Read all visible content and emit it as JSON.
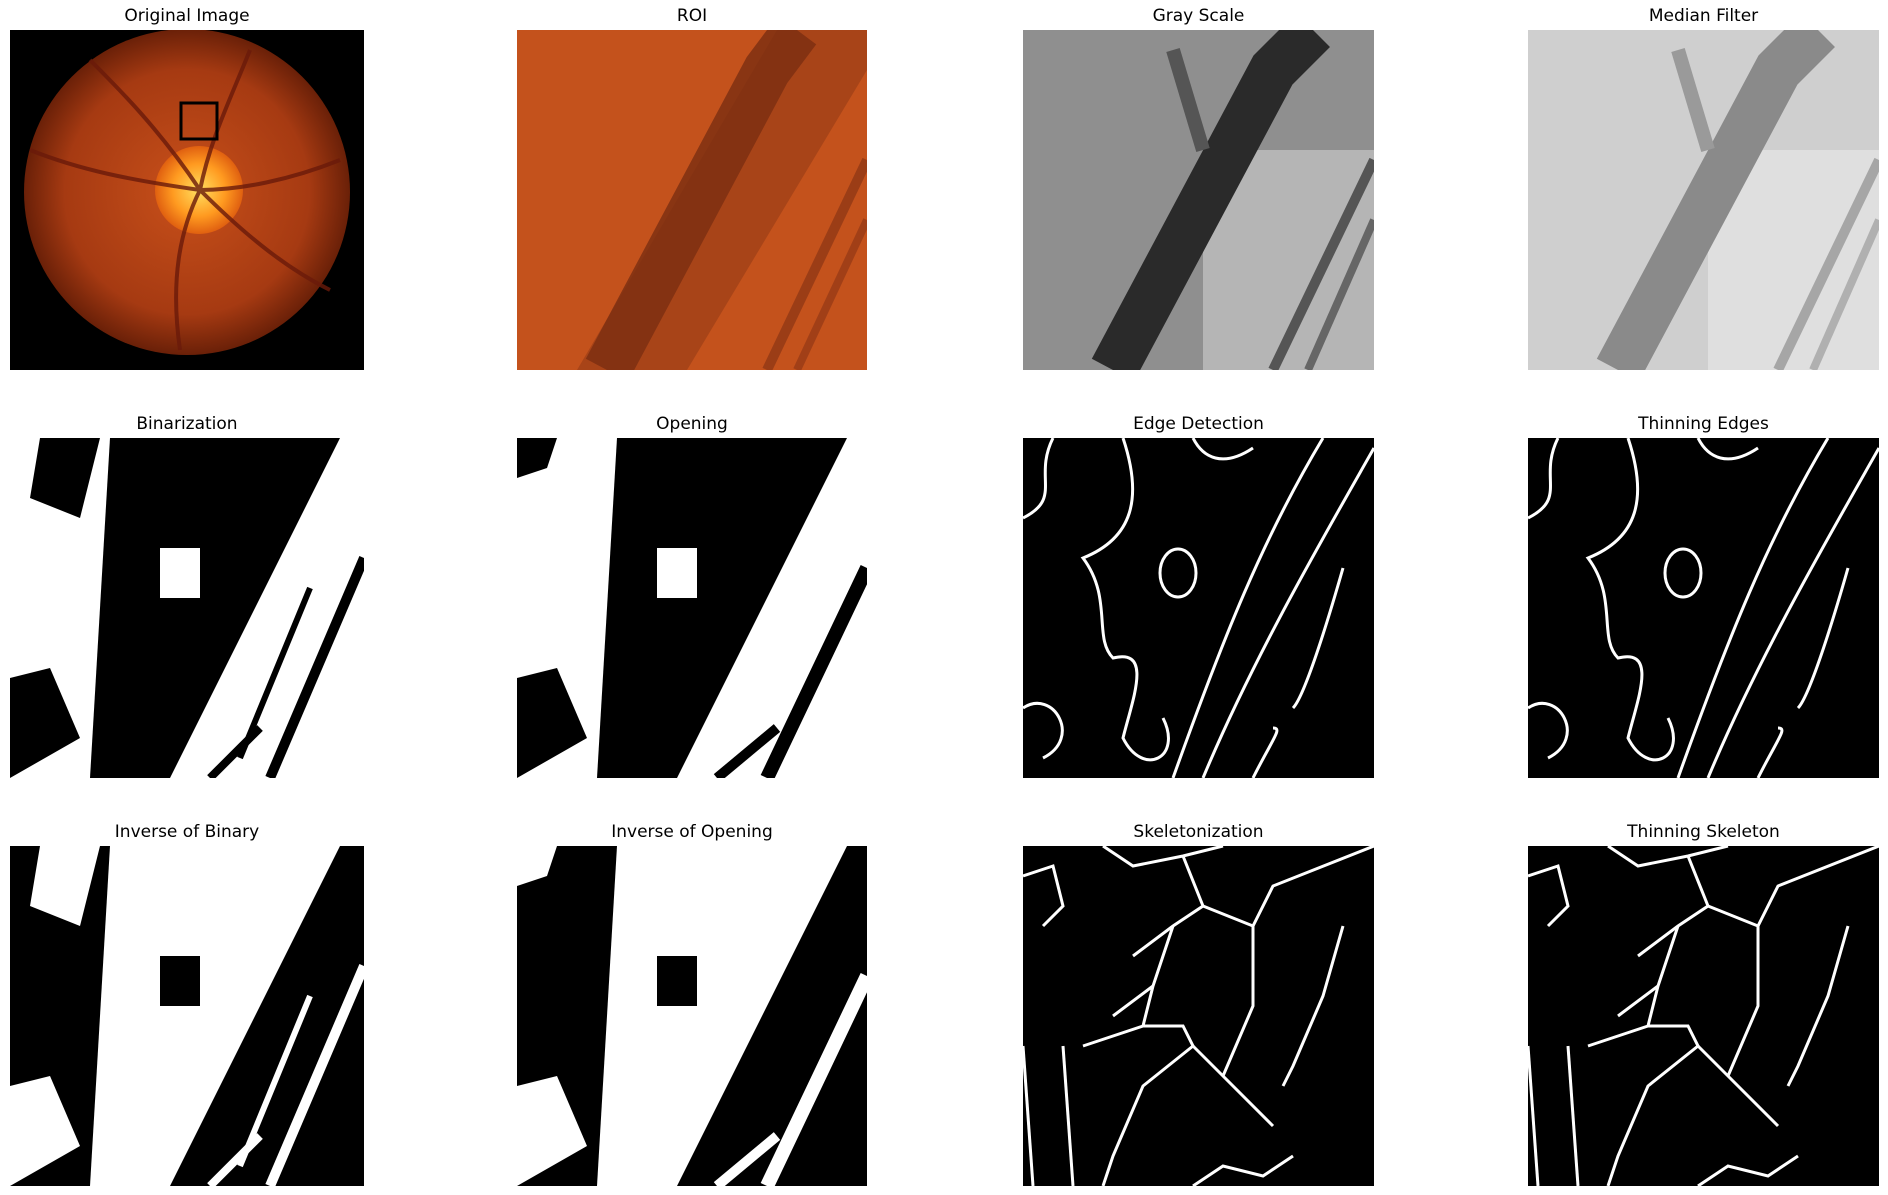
{
  "figure": {
    "panels": [
      {
        "id": "original",
        "title": "Original Image"
      },
      {
        "id": "roi",
        "title": "ROI"
      },
      {
        "id": "gray",
        "title": "Gray Scale"
      },
      {
        "id": "median",
        "title": "Median Filter"
      },
      {
        "id": "binarization",
        "title": "Binarization"
      },
      {
        "id": "opening",
        "title": "Opening"
      },
      {
        "id": "edge",
        "title": "Edge Detection"
      },
      {
        "id": "thin-edges",
        "title": "Thinning Edges"
      },
      {
        "id": "inv-binary",
        "title": "Inverse of Binary"
      },
      {
        "id": "inv-opening",
        "title": "Inverse of Opening"
      },
      {
        "id": "skeleton",
        "title": "Skeletonization"
      },
      {
        "id": "thin-skeleton",
        "title": "Thinning Skeleton"
      }
    ]
  }
}
